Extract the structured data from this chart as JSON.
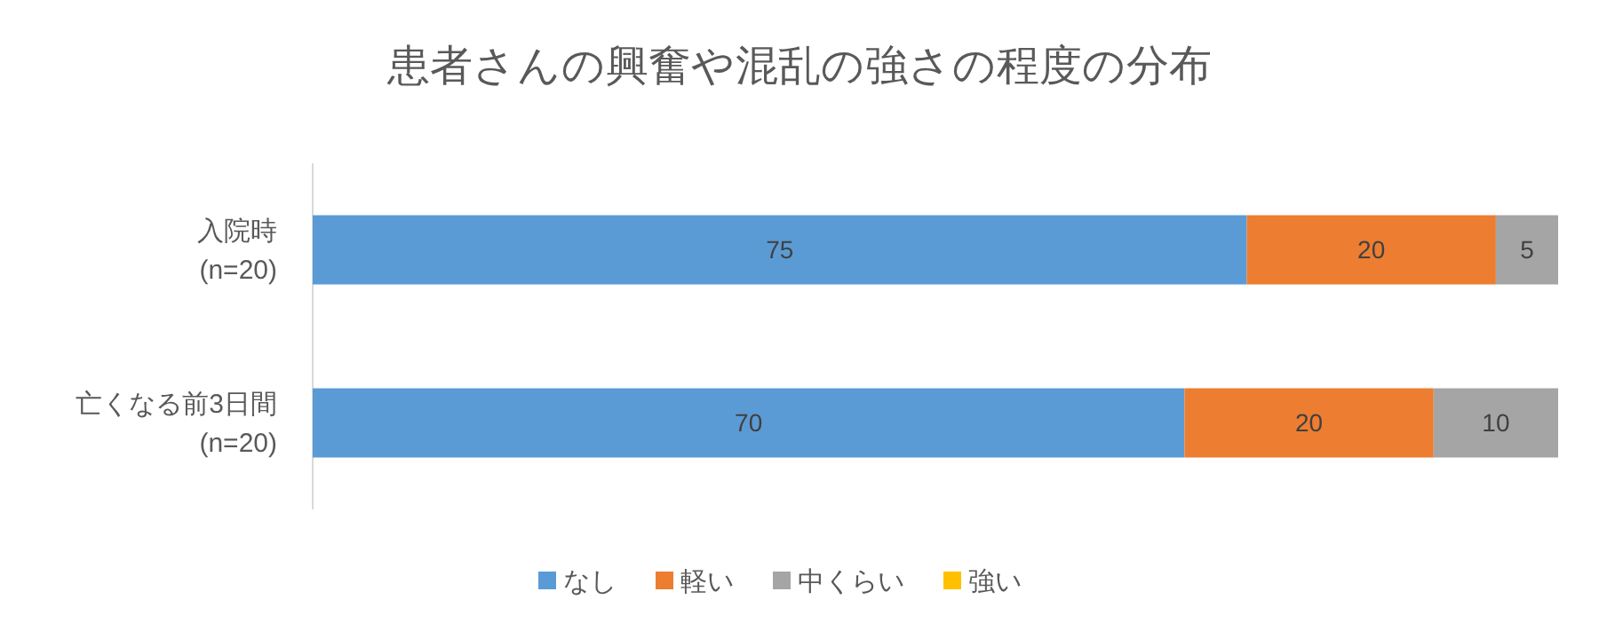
{
  "chart_data": {
    "type": "bar",
    "orientation": "horizontal",
    "stacked": true,
    "title": "患者さんの興奮や混乱の強さの程度の分布",
    "categories": [
      "入院時\n(n=20)",
      "亡くなる前3日間\n(n=20)"
    ],
    "xlim": [
      0,
      100
    ],
    "tick_labels": "y",
    "data_labels": true,
    "legend": "bottom",
    "series": [
      {
        "name": "なし",
        "color": "#5b9bd5",
        "values": [
          75,
          70
        ]
      },
      {
        "name": "軽い",
        "color": "#ed7d31",
        "values": [
          20,
          20
        ]
      },
      {
        "name": "中くらい",
        "color": "#a5a5a5",
        "values": [
          5,
          10
        ]
      },
      {
        "name": "強い",
        "color": "#ffc000",
        "values": [
          null,
          null
        ]
      }
    ]
  }
}
